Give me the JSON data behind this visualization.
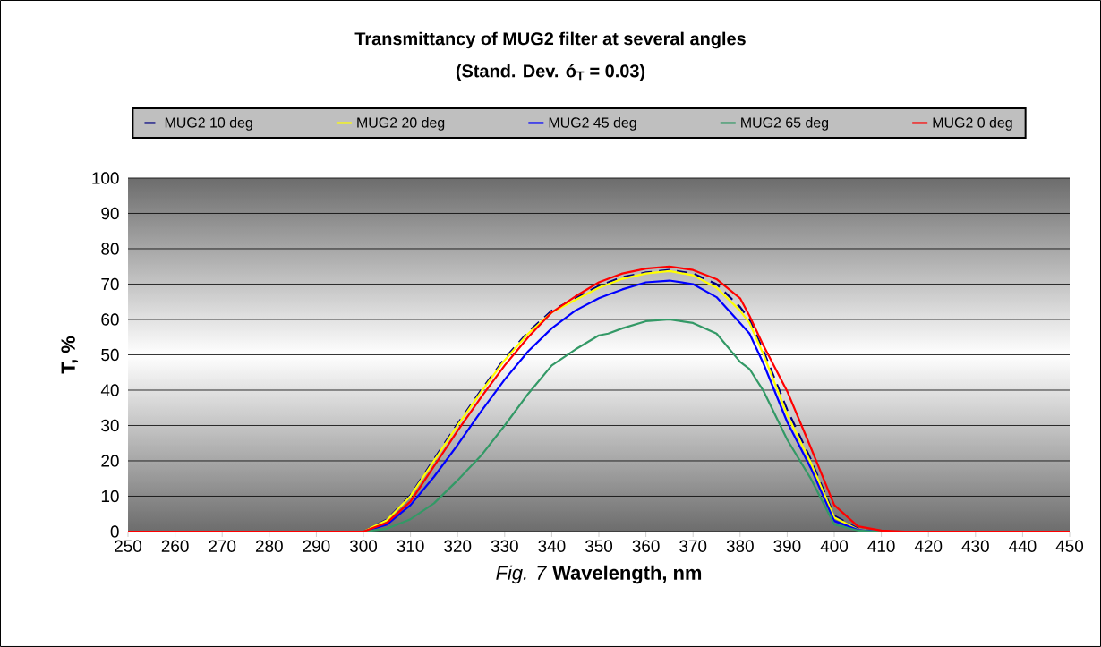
{
  "chart_data": {
    "type": "line",
    "title": "Transmittancy of MUG2 filter at several angles",
    "subtitle": "(Stand. Dev. ó$_{T}$ = 0.03)",
    "xlabel": "*Fig. 7*   **Wavelength, nm**",
    "ylabel": "T, %",
    "x": [
      250,
      300,
      305,
      310,
      315,
      320,
      325,
      330,
      335,
      340,
      345,
      350,
      352,
      355,
      360,
      365,
      370,
      375,
      380,
      382,
      385,
      390,
      395,
      400,
      405,
      410,
      415,
      450
    ],
    "xlim": [
      250,
      450
    ],
    "ylim": [
      0,
      100
    ],
    "xticks": [
      250,
      260,
      270,
      280,
      290,
      300,
      310,
      320,
      330,
      340,
      350,
      360,
      370,
      380,
      390,
      400,
      410,
      420,
      430,
      440,
      450
    ],
    "yticks": [
      0,
      10,
      20,
      30,
      40,
      50,
      60,
      70,
      80,
      90,
      100
    ],
    "grid": "y",
    "legend": "top",
    "marker": "none",
    "series": [
      {
        "name": "MUG2 10 deg",
        "color": "#000080",
        "line_style": "dashed",
        "values": [
          0,
          0,
          3.4,
          10.3,
          20.5,
          30.5,
          40,
          49,
          56.5,
          62.5,
          66,
          69.5,
          70.5,
          72,
          73.3,
          74,
          73,
          70,
          63.5,
          60,
          51,
          34.5,
          20.5,
          4.5,
          0.8,
          0,
          0,
          0
        ]
      },
      {
        "name": "MUG2 20 deg",
        "color": "#ffff00",
        "values": [
          0,
          0,
          3.2,
          10,
          20,
          30,
          39.5,
          48.5,
          56,
          62,
          65.5,
          69,
          70,
          71.5,
          73,
          73.7,
          72.5,
          69,
          62.5,
          59,
          50,
          33,
          19.5,
          4,
          0.6,
          0,
          null,
          null
        ]
      },
      {
        "name": "MUG2 45 deg",
        "color": "#0000ff",
        "values": [
          0,
          0,
          2,
          7.5,
          15.5,
          24.5,
          34,
          43,
          51,
          57.5,
          62.5,
          66,
          67,
          68.5,
          70.5,
          71,
          70,
          66.3,
          59,
          56,
          47.4,
          31,
          18,
          3,
          0.5,
          0,
          null,
          null
        ]
      },
      {
        "name": "MUG2 65 deg",
        "color": "#339966",
        "values": [
          0,
          0,
          0.8,
          3.5,
          8,
          14.5,
          21.5,
          30,
          39,
          47,
          51.5,
          55.5,
          56,
          57.5,
          59.5,
          60,
          59,
          56,
          48,
          46,
          39.7,
          26,
          15,
          2,
          0.3,
          0,
          0,
          0
        ]
      },
      {
        "name": "MUG2 0 deg",
        "color": "#ff0000",
        "values": [
          0,
          0,
          2.5,
          8.5,
          18.5,
          28.5,
          38,
          47,
          55,
          62,
          66.5,
          70.5,
          71.5,
          73,
          74.4,
          75,
          74,
          71.4,
          66,
          61,
          52.5,
          39.7,
          23.8,
          7.5,
          1.5,
          0.3,
          0,
          0
        ]
      }
    ]
  }
}
